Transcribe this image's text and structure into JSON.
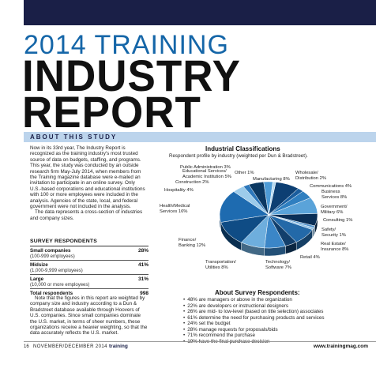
{
  "header": {
    "title_line1": "2014 TRAINING",
    "title_line2": "INDUSTRY",
    "title_line3": "REPORT"
  },
  "about": {
    "heading": "ABOUT THIS STUDY",
    "paragraph1": "Now in its 33rd year, The Industry Report is recognized as the training industry's most trusted source of data on budgets, staffing, and programs. This year, the study was conducted by an outside research firm May-July 2014, when members from the Training magazine database were e-mailed an invitation to participate in an online survey. Only U.S.-based corporations and educational institutions with 100 or more employees were included in the analysis. Agencies of the state, local, and federal government were not included in the analysis.",
    "paragraph2": "The data represents a cross-section of industries and company sizes."
  },
  "respondents": {
    "heading": "SURVEY RESPONDENTS",
    "rows": [
      {
        "label": "Small companies",
        "sub": "(100-999 employees)",
        "value": "28%"
      },
      {
        "label": "Midsize",
        "sub": "(1,000-9,999 employees)",
        "value": "41%"
      },
      {
        "label": "Large",
        "sub": "(10,000 or more employees)",
        "value": "31%"
      }
    ],
    "total_label": "Total respondents",
    "total_value": "998"
  },
  "note": "Note that the figures in this report are weighted by company size and industry according to a Dun & Bradstreet database available through Hoovers of U.S. companies. Since small companies dominate the U.S. market, in terms of sheer numbers, these organizations receive a heavier weighting, so that the data accurately reflects the U.S. market.",
  "chart_data": {
    "type": "pie",
    "title": "Industrial Classifications",
    "subtitle": "Respondent profile by industry (weighted per Dun & Bradstreet).",
    "slices": [
      {
        "label": "Manufacturing",
        "value": 8
      },
      {
        "label": "Wholesale/ Distribution",
        "value": 2
      },
      {
        "label": "Communications",
        "value": 4
      },
      {
        "label": "Business Services",
        "value": 8
      },
      {
        "label": "Government/ Military",
        "value": 6
      },
      {
        "label": "Consulting",
        "value": 1
      },
      {
        "label": "Safety/ Security",
        "value": 1
      },
      {
        "label": "Real Estate/ Insurance",
        "value": 8
      },
      {
        "label": "Retail",
        "value": 4
      },
      {
        "label": "Technology/ Software",
        "value": 7
      },
      {
        "label": "Transportation/ Utilities",
        "value": 8
      },
      {
        "label": "Finance/ Banking",
        "value": 12
      },
      {
        "label": "Health/Medical Services",
        "value": 16
      },
      {
        "label": "Hospitality",
        "value": 4
      },
      {
        "label": "Construction",
        "value": 2
      },
      {
        "label": "Educational Services/ Academic Institution",
        "value": 5
      },
      {
        "label": "Public Administration",
        "value": 3
      },
      {
        "label": "Other",
        "value": 1
      }
    ],
    "slice_labels": {
      "manufacturing": "Manufacturing 8%",
      "wholesale_1": "Wholesale/",
      "wholesale_2": "Distribution 2%",
      "communications": "Communications 4%",
      "business_1": "Business",
      "business_2": "Services 8%",
      "government_1": "Government/",
      "government_2": "Military 6%",
      "consulting": "Consulting 1%",
      "safety_1": "Safety/",
      "safety_2": "Security 1%",
      "realestate_1": "Real Estate/",
      "realestate_2": "Insurance 8%",
      "retail": "Retail 4%",
      "technology_1": "Technology/",
      "technology_2": "Software 7%",
      "transportation_1": "Transportation/",
      "transportation_2": "Utilities 8%",
      "finance_1": "Finance/",
      "finance_2": "Banking 12%",
      "health_1": "Health/Medical",
      "health_2": "Services 16%",
      "hospitality": "Hospitality 4%",
      "construction": "Construction 2%",
      "education_1": "Educational Services/",
      "education_2": "Academic Institution 5%",
      "public_admin": "Public Administration 3%",
      "other": "Other 1%"
    },
    "colors": [
      "#0d3f73",
      "#1b5e9e",
      "#2f7fc0",
      "#5aa3d9",
      "#0a2f57",
      "#4f92cc",
      "#8fc1e6",
      "#2369a8",
      "#123f6c",
      "#3b86c7",
      "#6eaedd",
      "#0f4c85",
      "#1e6bb0",
      "#9ccbea",
      "#2d78bb",
      "#0b3862",
      "#4d9bd6",
      "#b7daf1"
    ]
  },
  "survey_responses": {
    "title": "About Survey Respondents:",
    "items": [
      "48% are managers or above in the organization",
      "22% are developers or instructional designers",
      "26% are mid- to low-level (based on title selection) associates",
      "61% determine the need for purchasing products and services",
      "24% set the budget",
      "28% manage requests for proposals/bids",
      "71% recommend the purchase",
      "19% have the final purchase decision"
    ]
  },
  "footer": {
    "page": "16",
    "date": "NOVEMBER/DECEMBER 2014",
    "brand": "training",
    "url": "www.trainingmag.com"
  }
}
